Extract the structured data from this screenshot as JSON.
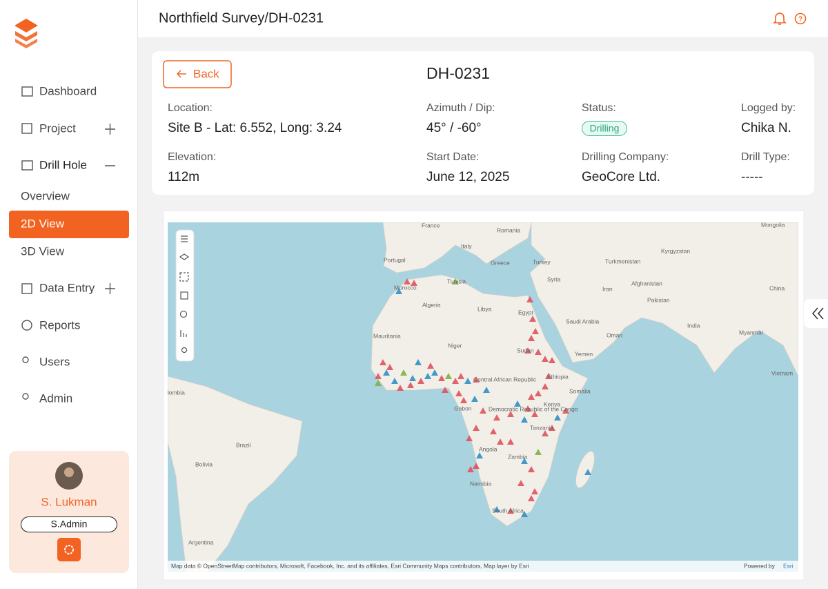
{
  "header": {
    "title": "Northfield Survey/DH-0231"
  },
  "sidebar": {
    "nav": [
      "Dashboard",
      "Project",
      "Drill Hole",
      "Overview",
      "2D View",
      "3D View",
      "Data Entry",
      "Reports",
      "Users",
      "Admin"
    ],
    "user": {
      "name": "S. Lukman",
      "role": "S.Admin"
    }
  },
  "detail": {
    "back": "Back",
    "title": "DH-0231",
    "fields": [
      {
        "label": "Location:",
        "value": "Site B - Lat: 6.552, Long: 3.24"
      },
      {
        "label": "Azimuth / Dip:",
        "value": "45° / -60°"
      },
      {
        "label": "Status:",
        "value": "Drilling"
      },
      {
        "label": "Logged by:",
        "value": "Chika N."
      },
      {
        "label": "Elevation:",
        "value": "112m"
      },
      {
        "label": "Start Date:",
        "value": "June 12, 2025"
      },
      {
        "label": "Drilling Company:",
        "value": "GeoCore Ltd."
      },
      {
        "label": "Drill Type:",
        "value": "-----"
      }
    ]
  },
  "map": {
    "labels": [
      "France",
      "Romania",
      "Mongolia",
      "Italy",
      "Portugal",
      "Greece",
      "Turkey",
      "Turkmenistan",
      "Kyrgyzstan",
      "Tunisia",
      "Syria",
      "Iran",
      "Afghanistan",
      "China",
      "Morocco",
      "Algeria",
      "Libya",
      "Egypt",
      "Pakistan",
      "Saudi Arabia",
      "India",
      "Oman",
      "Myanmar",
      "Mauritania",
      "Niger",
      "Sudan",
      "Yemen",
      "Central African Republic",
      "Ethiopia",
      "Somalia",
      "Vietnam",
      "Colombia",
      "Kenya",
      "Gabon",
      "Democratic Republic of the Congo",
      "Tanzania",
      "Brazil",
      "Angola",
      "Zambia",
      "Bolivia",
      "Namibia",
      "South Africa",
      "Argentina"
    ],
    "attribution": "Map data © OpenStreetMap contributors, Microsoft, Facebook, Inc. and its affiliates, Esri Community Maps contributors, Map layer by Esri",
    "powered": "Powered by",
    "esri": "Esri"
  }
}
